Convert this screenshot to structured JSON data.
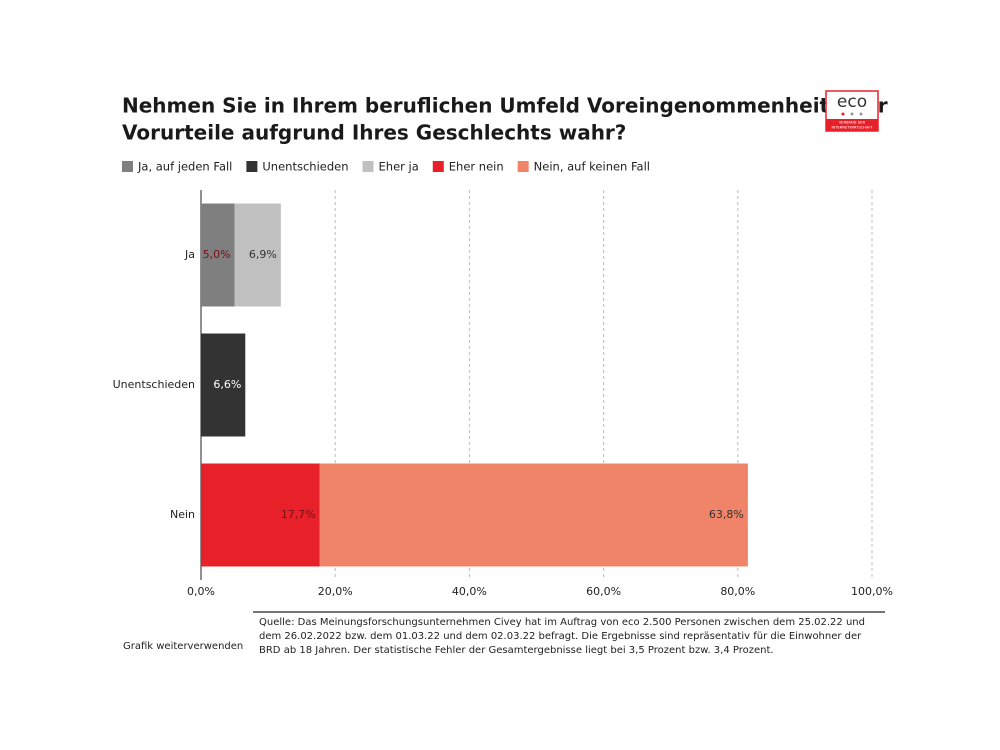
{
  "chart_data": {
    "type": "stacked-bar-horizontal",
    "title": [
      "Nehmen Sie in Ihrem beruflichen Umfeld Voreingenommenheit oder",
      "Vorurteile aufgrund Ihres Geschlechts wahr?"
    ],
    "categories": [
      "Ja",
      "Unentschieden",
      "Nein"
    ],
    "series": [
      {
        "name": "Ja, auf jeden Fall",
        "color": "#7f7f7f",
        "values": [
          5.0,
          null,
          null
        ],
        "value_labels": [
          "5,0%",
          null,
          null
        ]
      },
      {
        "name": "Unentschieden",
        "color": "#333333",
        "values": [
          null,
          6.6,
          null
        ],
        "value_labels": [
          null,
          "6,6%",
          null
        ]
      },
      {
        "name": "Eher ja",
        "color": "#c0c0c0",
        "values": [
          6.9,
          null,
          null
        ],
        "value_labels": [
          "6,9%",
          null,
          null
        ]
      },
      {
        "name": "Eher nein",
        "color": "#e8202a",
        "values": [
          null,
          null,
          17.7
        ],
        "value_labels": [
          null,
          null,
          "17,7%"
        ]
      },
      {
        "name": "Nein, auf keinen Fall",
        "color": "#f08468",
        "values": [
          null,
          null,
          63.8
        ],
        "value_labels": [
          null,
          null,
          "63,8%"
        ]
      }
    ],
    "xlim": [
      0,
      100
    ],
    "xticks": [
      {
        "value": 0,
        "label": "0,0%"
      },
      {
        "value": 20,
        "label": "20,0%"
      },
      {
        "value": 40,
        "label": "40,0%"
      },
      {
        "value": 60,
        "label": "60,0%"
      },
      {
        "value": 80,
        "label": "80,0%"
      },
      {
        "value": 100,
        "label": "100,0%"
      }
    ],
    "grid": true,
    "legend": "top"
  },
  "logo": {
    "name": "eco",
    "subtitle": [
      "VERBAND DER",
      "INTERNETWIRTSCHAFT"
    ]
  },
  "source": "Quelle: Das Meinungsforschungsunternehmen Civey hat im Auftrag von eco 2.500 Personen zwischen dem 25.02.22 und dem 26.02.2022 bzw. dem 01.03.22 und dem 02.03.22 befragt. Die Ergebnisse sind repräsentativ für die Einwohner der BRD ab 18 Jahren. Der statistische Fehler der Gesamtergebnisse liegt bei 3,5 Prozent bzw. 3,4 Prozent.",
  "reuse_link": "Grafik weiterverwenden"
}
